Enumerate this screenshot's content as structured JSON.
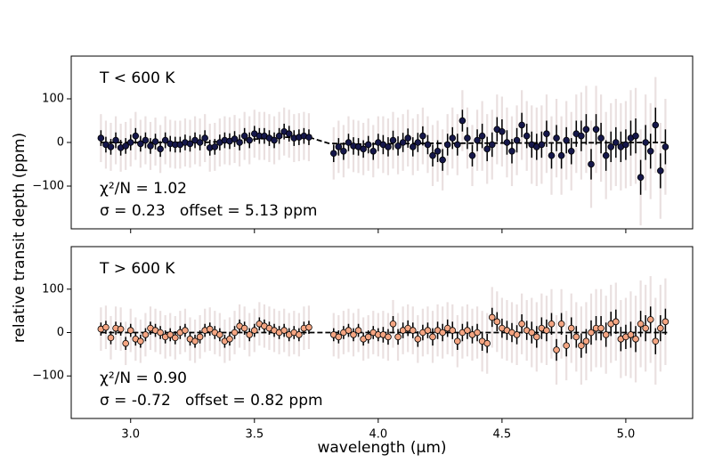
{
  "chart_data": [
    {
      "type": "errorbar",
      "ylabel": "relative transit depth (ppm)",
      "annotations": [
        "T < 600 K",
        "χ²/N = 1.02",
        "σ = 0.23   offset = 5.13 ppm"
      ],
      "color": "#15174a",
      "error_color": "#000000",
      "wide_error_color": "#e6dada",
      "x": [
        2.88,
        2.9,
        2.92,
        2.94,
        2.96,
        2.98,
        3,
        3.02,
        3.04,
        3.06,
        3.08,
        3.1,
        3.12,
        3.14,
        3.16,
        3.18,
        3.2,
        3.22,
        3.24,
        3.26,
        3.28,
        3.3,
        3.32,
        3.34,
        3.36,
        3.38,
        3.4,
        3.42,
        3.44,
        3.46,
        3.48,
        3.5,
        3.52,
        3.54,
        3.56,
        3.58,
        3.6,
        3.62,
        3.64,
        3.66,
        3.68,
        3.7,
        3.72,
        3.82,
        3.84,
        3.86,
        3.88,
        3.9,
        3.92,
        3.94,
        3.96,
        3.98,
        4,
        4.02,
        4.04,
        4.06,
        4.08,
        4.1,
        4.12,
        4.14,
        4.16,
        4.18,
        4.2,
        4.22,
        4.24,
        4.26,
        4.28,
        4.3,
        4.32,
        4.34,
        4.36,
        4.38,
        4.4,
        4.42,
        4.44,
        4.46,
        4.48,
        4.5,
        4.52,
        4.54,
        4.56,
        4.58,
        4.6,
        4.62,
        4.64,
        4.66,
        4.68,
        4.7,
        4.72,
        4.74,
        4.76,
        4.78,
        4.8,
        4.82,
        4.84,
        4.86,
        4.88,
        4.9,
        4.92,
        4.94,
        4.96,
        4.98,
        5,
        5.02,
        5.04,
        5.06,
        5.08,
        5.1,
        5.12,
        5.14,
        5.16
      ],
      "values": [
        10,
        -5,
        -10,
        5,
        -12,
        -8,
        0,
        15,
        -3,
        5,
        -8,
        2,
        -15,
        5,
        -3,
        -5,
        -5,
        0,
        -3,
        5,
        0,
        10,
        -12,
        -10,
        0,
        5,
        3,
        8,
        0,
        15,
        5,
        20,
        15,
        15,
        10,
        5,
        15,
        25,
        20,
        10,
        12,
        15,
        12,
        -25,
        -10,
        -20,
        0,
        -8,
        -10,
        -15,
        -5,
        -20,
        0,
        -5,
        -10,
        5,
        -8,
        0,
        10,
        -10,
        0,
        15,
        -5,
        -30,
        -20,
        -40,
        -5,
        10,
        -5,
        50,
        10,
        -30,
        5,
        15,
        -15,
        -5,
        30,
        25,
        0,
        -20,
        5,
        40,
        15,
        -5,
        -10,
        -5,
        20,
        -30,
        10,
        -30,
        5,
        -20,
        20,
        15,
        30,
        -50,
        30,
        10,
        -30,
        -10,
        0,
        -10,
        -5,
        10,
        15,
        -80,
        0,
        -20,
        40,
        -65,
        -10
      ],
      "errors": [
        18,
        18,
        18,
        18,
        18,
        18,
        18,
        18,
        18,
        18,
        18,
        18,
        18,
        18,
        18,
        18,
        18,
        18,
        18,
        18,
        18,
        18,
        18,
        18,
        18,
        18,
        18,
        18,
        18,
        18,
        18,
        18,
        18,
        18,
        18,
        18,
        18,
        18,
        18,
        18,
        18,
        18,
        18,
        20,
        20,
        20,
        20,
        20,
        20,
        20,
        20,
        20,
        20,
        22,
        22,
        22,
        22,
        22,
        22,
        22,
        22,
        22,
        22,
        25,
        25,
        25,
        25,
        25,
        25,
        25,
        25,
        25,
        25,
        28,
        28,
        28,
        28,
        28,
        28,
        28,
        28,
        28,
        28,
        30,
        30,
        30,
        30,
        30,
        30,
        30,
        30,
        30,
        30,
        35,
        35,
        35,
        35,
        35,
        35,
        35,
        35,
        35,
        35,
        40,
        40,
        40,
        40,
        40,
        40,
        40,
        40
      ],
      "wide_errors": [
        55,
        55,
        55,
        55,
        55,
        55,
        55,
        55,
        55,
        55,
        55,
        55,
        55,
        55,
        55,
        55,
        55,
        55,
        55,
        55,
        55,
        55,
        55,
        55,
        55,
        55,
        55,
        55,
        55,
        55,
        55,
        55,
        55,
        55,
        55,
        55,
        55,
        55,
        55,
        55,
        55,
        55,
        55,
        60,
        60,
        60,
        60,
        60,
        60,
        60,
        60,
        60,
        60,
        65,
        65,
        65,
        65,
        65,
        65,
        65,
        65,
        65,
        65,
        70,
        70,
        70,
        70,
        70,
        70,
        70,
        70,
        70,
        70,
        80,
        80,
        80,
        80,
        80,
        80,
        80,
        80,
        80,
        80,
        90,
        90,
        90,
        90,
        90,
        90,
        90,
        90,
        90,
        90,
        100,
        100,
        100,
        100,
        100,
        100,
        100,
        100,
        100,
        100,
        110,
        110,
        110,
        110,
        110,
        110,
        110,
        110
      ],
      "model": {
        "x": [
          2.88,
          3.3,
          3.45,
          3.6,
          3.72,
          3.8,
          3.9,
          4.2,
          5.17
        ],
        "values": [
          0,
          0,
          5,
          12,
          12,
          -2,
          -4,
          -2,
          0
        ]
      },
      "xlim": [
        2.76,
        5.27
      ],
      "ylim": [
        -198,
        198
      ],
      "xticks": [
        3,
        3.5,
        4,
        4.5,
        5
      ],
      "show_xticklabels": false,
      "yticks": [
        {
          "value": -100,
          "label": "−100"
        },
        0,
        100
      ]
    },
    {
      "type": "errorbar",
      "xlabel": "wavelength (μm)",
      "annotations": [
        "T > 600 K",
        "χ²/N = 0.90",
        "σ = -0.72   offset = 0.82 ppm"
      ],
      "color": "#f4a582",
      "error_color": "#000000",
      "wide_error_color": "#e6dada",
      "x": [
        2.88,
        2.9,
        2.92,
        2.94,
        2.96,
        2.98,
        3,
        3.02,
        3.04,
        3.06,
        3.08,
        3.1,
        3.12,
        3.14,
        3.16,
        3.18,
        3.2,
        3.22,
        3.24,
        3.26,
        3.28,
        3.3,
        3.32,
        3.34,
        3.36,
        3.38,
        3.4,
        3.42,
        3.44,
        3.46,
        3.48,
        3.5,
        3.52,
        3.54,
        3.56,
        3.58,
        3.6,
        3.62,
        3.64,
        3.66,
        3.68,
        3.7,
        3.72,
        3.82,
        3.84,
        3.86,
        3.88,
        3.9,
        3.92,
        3.94,
        3.96,
        3.98,
        4,
        4.02,
        4.04,
        4.06,
        4.08,
        4.1,
        4.12,
        4.14,
        4.16,
        4.18,
        4.2,
        4.22,
        4.24,
        4.26,
        4.28,
        4.3,
        4.32,
        4.34,
        4.36,
        4.38,
        4.4,
        4.42,
        4.44,
        4.46,
        4.48,
        4.5,
        4.52,
        4.54,
        4.56,
        4.58,
        4.6,
        4.62,
        4.64,
        4.66,
        4.68,
        4.7,
        4.72,
        4.74,
        4.76,
        4.78,
        4.8,
        4.82,
        4.84,
        4.86,
        4.88,
        4.9,
        4.92,
        4.94,
        4.96,
        4.98,
        5,
        5.02,
        5.04,
        5.06,
        5.08,
        5.1,
        5.12,
        5.14,
        5.16
      ],
      "values": [
        8,
        12,
        -12,
        10,
        8,
        -25,
        5,
        -15,
        -20,
        -5,
        10,
        5,
        0,
        -10,
        -5,
        -12,
        0,
        5,
        -15,
        -20,
        -10,
        5,
        8,
        0,
        -5,
        -20,
        -15,
        0,
        15,
        10,
        -5,
        5,
        20,
        15,
        10,
        5,
        0,
        5,
        -5,
        0,
        -5,
        10,
        12,
        -5,
        -10,
        0,
        5,
        -5,
        5,
        -15,
        -10,
        0,
        -5,
        -5,
        -10,
        20,
        -10,
        5,
        10,
        5,
        -15,
        0,
        5,
        -10,
        5,
        0,
        10,
        5,
        -20,
        0,
        5,
        -5,
        0,
        -20,
        -25,
        35,
        25,
        10,
        5,
        0,
        -5,
        20,
        5,
        0,
        -10,
        10,
        5,
        20,
        -40,
        20,
        -30,
        10,
        -10,
        -30,
        -20,
        0,
        10,
        10,
        -5,
        20,
        25,
        -15,
        -10,
        -5,
        -15,
        20,
        10,
        30,
        -20,
        10,
        25
      ],
      "errors": [
        15,
        15,
        15,
        15,
        15,
        15,
        15,
        15,
        15,
        15,
        15,
        15,
        15,
        15,
        15,
        15,
        15,
        15,
        15,
        15,
        15,
        15,
        15,
        15,
        15,
        15,
        15,
        15,
        15,
        15,
        15,
        15,
        15,
        15,
        15,
        15,
        15,
        15,
        15,
        15,
        15,
        15,
        15,
        15,
        15,
        15,
        15,
        15,
        15,
        15,
        15,
        15,
        15,
        18,
        18,
        18,
        18,
        18,
        18,
        18,
        18,
        18,
        18,
        20,
        20,
        20,
        20,
        20,
        20,
        20,
        20,
        20,
        20,
        22,
        22,
        22,
        22,
        22,
        22,
        22,
        22,
        22,
        22,
        25,
        25,
        25,
        25,
        25,
        25,
        25,
        25,
        25,
        25,
        28,
        28,
        28,
        28,
        28,
        28,
        28,
        28,
        28,
        28,
        30,
        30,
        30,
        30,
        30,
        30,
        30,
        30
      ],
      "wide_errors": [
        50,
        50,
        50,
        50,
        50,
        50,
        50,
        50,
        50,
        50,
        50,
        50,
        50,
        50,
        50,
        50,
        50,
        50,
        50,
        50,
        50,
        50,
        50,
        50,
        50,
        50,
        50,
        50,
        50,
        50,
        50,
        50,
        50,
        50,
        50,
        50,
        50,
        50,
        50,
        50,
        50,
        50,
        50,
        50,
        50,
        50,
        50,
        50,
        50,
        50,
        50,
        50,
        50,
        55,
        55,
        55,
        55,
        55,
        55,
        55,
        55,
        55,
        55,
        60,
        60,
        60,
        60,
        60,
        60,
        60,
        60,
        60,
        60,
        70,
        70,
        70,
        70,
        70,
        70,
        70,
        70,
        70,
        70,
        80,
        80,
        80,
        80,
        80,
        80,
        80,
        80,
        80,
        80,
        90,
        90,
        90,
        90,
        90,
        90,
        90,
        90,
        90,
        90,
        100,
        100,
        100,
        100,
        100,
        100,
        100,
        100
      ],
      "model": {
        "x": [
          2.88,
          3.72,
          3.82,
          5.17
        ],
        "values": [
          0,
          0,
          0,
          0
        ]
      },
      "xlim": [
        2.76,
        5.27
      ],
      "ylim": [
        -198,
        198
      ],
      "xticks": [
        {
          "value": 3,
          "label": "3.0"
        },
        {
          "value": 3.5,
          "label": "3.5"
        },
        {
          "value": 4,
          "label": "4.0"
        },
        {
          "value": 4.5,
          "label": "4.5"
        },
        {
          "value": 5,
          "label": "5.0"
        }
      ],
      "show_xticklabels": true,
      "yticks": [
        {
          "value": -100,
          "label": "−100"
        },
        0,
        100
      ]
    }
  ]
}
